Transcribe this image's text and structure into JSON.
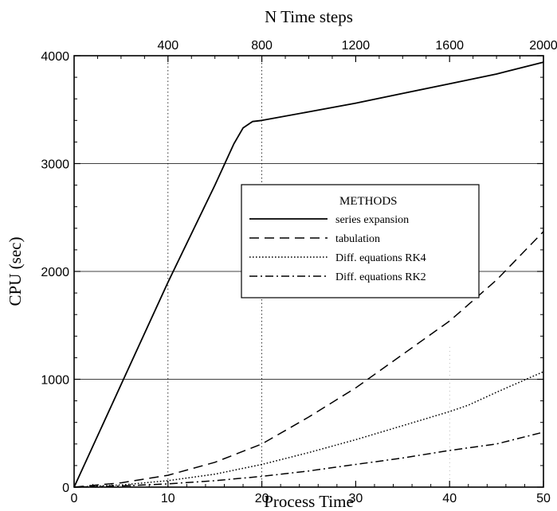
{
  "chart_data": {
    "type": "line",
    "title": "",
    "xlabel": "Process Time",
    "ylabel": "CPU (sec)",
    "x2label": "N Time steps",
    "xlim": [
      0,
      50
    ],
    "ylim": [
      0,
      4000
    ],
    "x2lim": [
      0,
      2000
    ],
    "xticks": [
      0,
      10,
      20,
      30,
      40,
      50
    ],
    "yticks": [
      0,
      1000,
      2000,
      3000,
      4000
    ],
    "x2ticks": [
      400,
      800,
      1200,
      1600,
      2000
    ],
    "xtick_labels": [
      "0",
      "10",
      "20",
      "30",
      "40",
      "50"
    ],
    "ytick_labels": [
      "0",
      "1000",
      "2000",
      "3000",
      "4000"
    ],
    "x2tick_labels": [
      "400",
      "800",
      "1200",
      "1600",
      "2000"
    ],
    "grid": true,
    "legend": {
      "title": "METHODS",
      "placement": "center-right"
    },
    "series": [
      {
        "name": "series expansion",
        "style": "solid",
        "x": [
          0,
          5,
          10,
          15,
          17,
          18,
          19,
          20,
          25,
          30,
          35,
          40,
          45,
          50
        ],
        "y": [
          0,
          950,
          1900,
          2800,
          3180,
          3330,
          3390,
          3400,
          3480,
          3560,
          3650,
          3740,
          3830,
          3940
        ]
      },
      {
        "name": "tabulation",
        "style": "dashed",
        "x": [
          0,
          5,
          10,
          15,
          20,
          25,
          30,
          35,
          40,
          45,
          50
        ],
        "y": [
          0,
          40,
          110,
          230,
          400,
          650,
          920,
          1230,
          1540,
          1920,
          2370
        ]
      },
      {
        "name": "Diff. equations RK4",
        "style": "dotted",
        "x": [
          0,
          5,
          10,
          15,
          20,
          25,
          30,
          35,
          40,
          42,
          45,
          50
        ],
        "y": [
          0,
          20,
          60,
          120,
          210,
          320,
          440,
          570,
          700,
          760,
          880,
          1070
        ]
      },
      {
        "name": "Diff. equations RK2",
        "style": "dashdot",
        "x": [
          0,
          5,
          10,
          15,
          20,
          25,
          30,
          35,
          40,
          45,
          50
        ],
        "y": [
          0,
          10,
          30,
          60,
          100,
          150,
          210,
          270,
          340,
          400,
          510
        ]
      }
    ]
  }
}
